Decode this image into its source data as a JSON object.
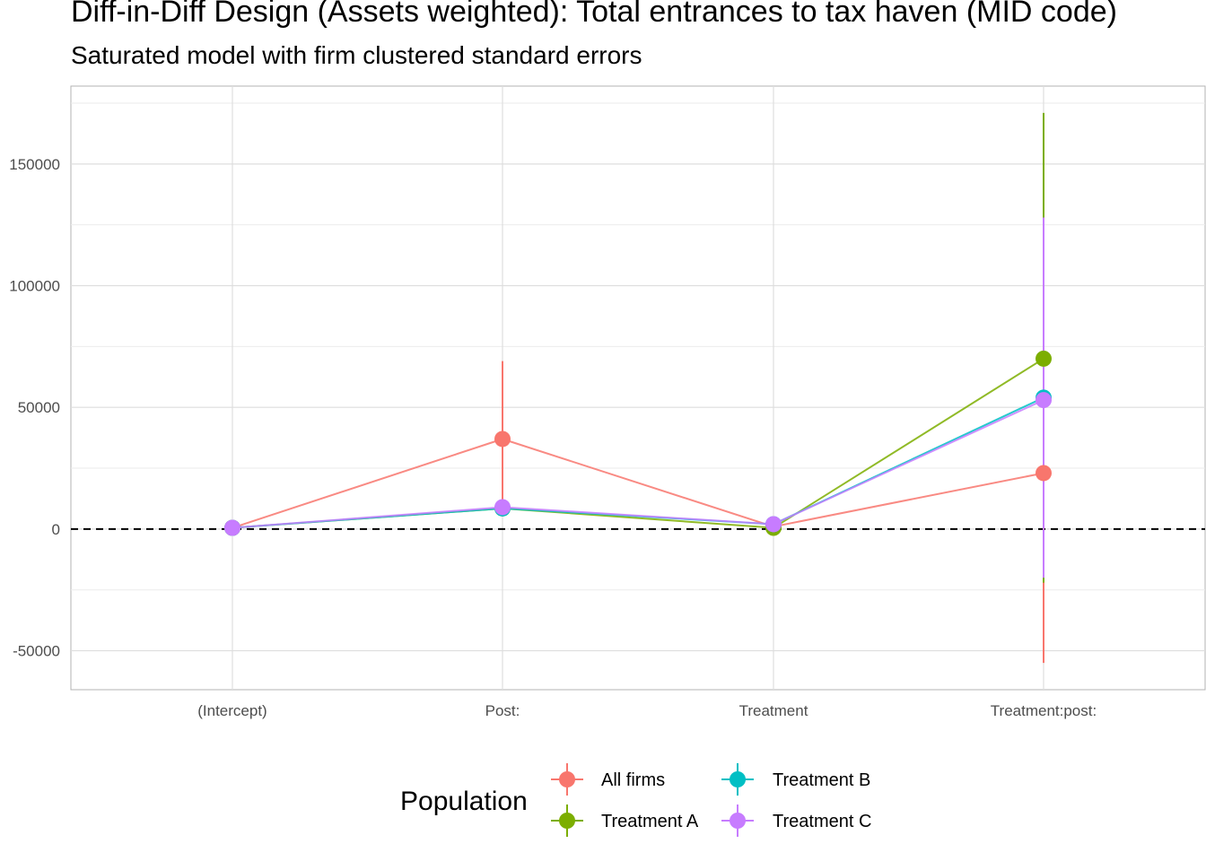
{
  "chart_data": {
    "type": "line",
    "title": "Diff-in-Diff Design (Assets weighted): Total entrances to tax haven (MID code)",
    "subtitle": "Saturated model with firm clustered standard errors",
    "xlabel": "",
    "ylabel": "",
    "categories": [
      "(Intercept)",
      "Post:",
      "Treatment",
      "Treatment:post:"
    ],
    "ylim": [
      -66000,
      182000
    ],
    "yticks": [
      -50000,
      0,
      50000,
      100000,
      150000
    ],
    "reference_line": 0,
    "grid": true,
    "legend": {
      "title": "Population",
      "placement": "bottom"
    },
    "series": [
      {
        "name": "All firms",
        "color": "#F8766D",
        "values": [
          500,
          37000,
          1000,
          23000
        ],
        "lower": [
          null,
          12000,
          null,
          -55000
        ],
        "upper": [
          null,
          69000,
          null,
          101000
        ]
      },
      {
        "name": "Treatment A",
        "color": "#7CAE00",
        "values": [
          500,
          8500,
          500,
          70000
        ],
        "lower": [
          null,
          null,
          null,
          -22000
        ],
        "upper": [
          null,
          null,
          null,
          171000
        ]
      },
      {
        "name": "Treatment B",
        "color": "#00BFC4",
        "values": [
          500,
          8500,
          2000,
          54000
        ],
        "lower": [
          null,
          null,
          null,
          -20000
        ],
        "upper": [
          null,
          null,
          null,
          128000
        ]
      },
      {
        "name": "Treatment C",
        "color": "#C77CFF",
        "values": [
          500,
          9000,
          2000,
          53000
        ],
        "lower": [
          null,
          null,
          null,
          -20000
        ],
        "upper": [
          null,
          null,
          null,
          128000
        ]
      }
    ]
  }
}
